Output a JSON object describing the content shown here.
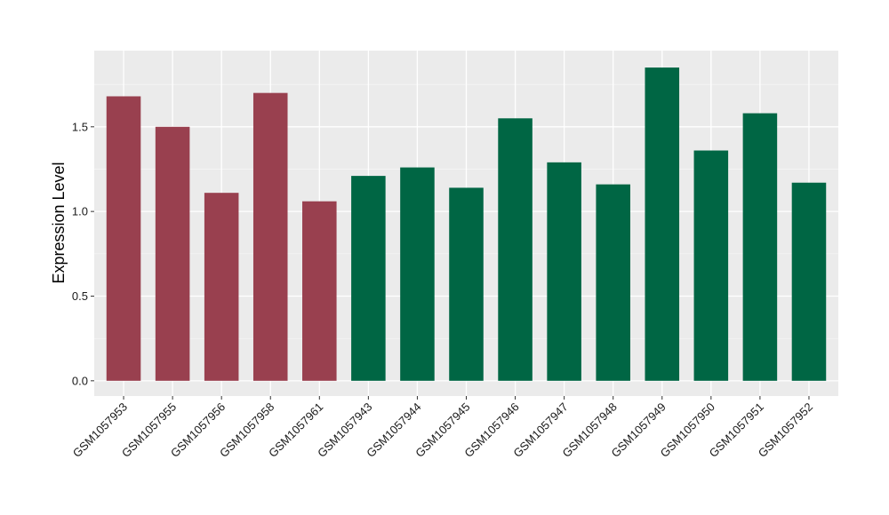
{
  "chart_data": {
    "type": "bar",
    "title": "",
    "xlabel": "",
    "ylabel": "Expression Level",
    "ylim": [
      -0.09,
      1.95
    ],
    "yticks": [
      0.0,
      0.5,
      1.0,
      1.5
    ],
    "ytick_labels": [
      "0.0",
      "0.5",
      "1.0",
      "1.5"
    ],
    "grid": true,
    "legend": "none",
    "panel_background": "#ebebeb",
    "grid_color": "#ffffff",
    "categories": [
      "GSM1057953",
      "GSM1057955",
      "GSM1057956",
      "GSM1057958",
      "GSM1057961",
      "GSM1057943",
      "GSM1057944",
      "GSM1057945",
      "GSM1057946",
      "GSM1057947",
      "GSM1057948",
      "GSM1057949",
      "GSM1057950",
      "GSM1057951",
      "GSM1057952"
    ],
    "values": [
      1.68,
      1.5,
      1.11,
      1.7,
      1.06,
      1.21,
      1.26,
      1.14,
      1.55,
      1.29,
      1.16,
      1.85,
      1.36,
      1.58,
      1.17
    ],
    "colors": [
      "#99404f",
      "#99404f",
      "#99404f",
      "#99404f",
      "#99404f",
      "#006644",
      "#006644",
      "#006644",
      "#006644",
      "#006644",
      "#006644",
      "#006644",
      "#006644",
      "#006644",
      "#006644"
    ]
  }
}
